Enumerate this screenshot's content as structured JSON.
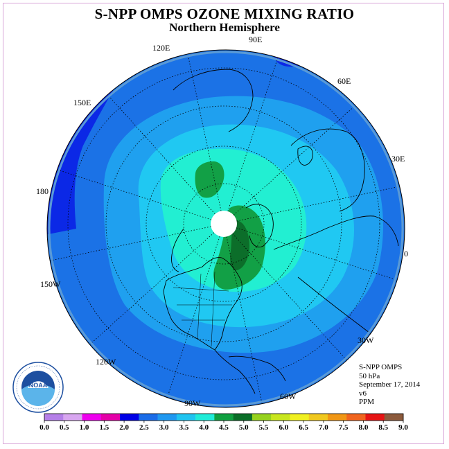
{
  "title": "S-NPP OMPS OZONE MIXING RATIO",
  "subtitle": "Northern Hemisphere",
  "longitude_labels": [
    "90E",
    "60E",
    "30E",
    "0",
    "30W",
    "60W",
    "90W",
    "120W",
    "150W",
    "180",
    "150E",
    "120E"
  ],
  "info": {
    "instrument": "S-NPP OMPS",
    "level": "50 hPa",
    "date": "September 17, 2014",
    "version": "v6",
    "units": "PPM"
  },
  "logo_text": "NOAA",
  "colorbar": {
    "ticks": [
      "0.0",
      "0.5",
      "1.0",
      "1.5",
      "2.0",
      "2.5",
      "3.0",
      "3.5",
      "4.0",
      "4.5",
      "5.0",
      "5.5",
      "6.0",
      "6.5",
      "7.0",
      "7.5",
      "8.0",
      "8.5",
      "9.0"
    ],
    "colors": [
      "#b57fe8",
      "#d8a6f0",
      "#ee00ee",
      "#e400a8",
      "#0000e6",
      "#1a6ce8",
      "#1f98f0",
      "#20c4f0",
      "#20ecd8",
      "#10a040",
      "#0a6e28",
      "#96d21e",
      "#c8e61e",
      "#f0f020",
      "#f0c81e",
      "#f09614",
      "#f0641e",
      "#e61414",
      "#8c5a3c"
    ]
  },
  "contour_colors": {
    "c2_0": "#0b28e6",
    "c2_5": "#1b72e6",
    "c3_0": "#1fa0ef",
    "c3_5": "#20c8f2",
    "c4_0": "#22efd2",
    "c4_5": "#12a046",
    "c5_0": "#0c6e2a",
    "missing": "#ffffff"
  }
}
